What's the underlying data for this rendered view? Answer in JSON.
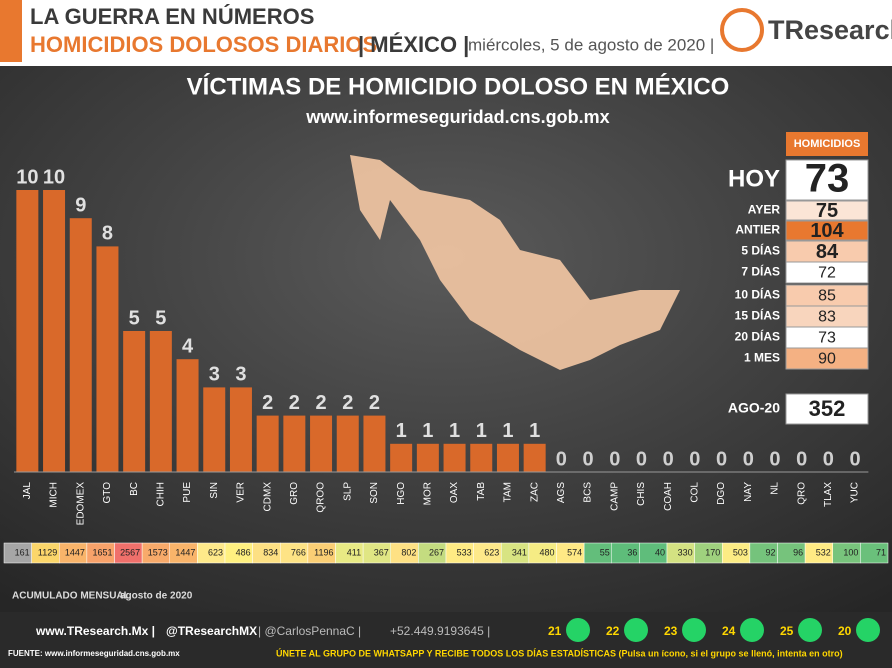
{
  "header": {
    "line1": "LA GUERRA EN NÚMEROS",
    "line2": "HOMICIDIOS DOLOSOS DIARIOS",
    "country": "| MÉXICO |",
    "date": "miércoles, 5 de agosto de 2020 |",
    "logo": "TResearch"
  },
  "chart_data": {
    "type": "bar",
    "title": "VÍCTIMAS DE HOMICIDIO DOLOSO EN MÉXICO",
    "subtitle": "www.informeseguridad.cns.gob.mx",
    "categories": [
      "JAL",
      "MICH",
      "EDOMEX",
      "GTO",
      "BC",
      "CHIH",
      "PUE",
      "SIN",
      "VER",
      "CDMX",
      "GRO",
      "QROO",
      "SLP",
      "SON",
      "HGO",
      "MOR",
      "OAX",
      "TAB",
      "TAM",
      "ZAC",
      "AGS",
      "BCS",
      "CAMP",
      "CHIS",
      "COAH",
      "COL",
      "DGO",
      "NAY",
      "NL",
      "QRO",
      "TLAX",
      "YUC"
    ],
    "values": [
      10,
      10,
      9,
      8,
      5,
      5,
      4,
      3,
      3,
      2,
      2,
      2,
      2,
      2,
      1,
      1,
      1,
      1,
      1,
      1,
      0,
      0,
      0,
      0,
      0,
      0,
      0,
      0,
      0,
      0,
      0,
      0
    ],
    "color": "#d9692a"
  },
  "monthly": {
    "label": "ACUMULADO MENSUAL",
    "period": "agosto de 2020",
    "values": [
      161,
      1129,
      1447,
      1651,
      2567,
      1573,
      1447,
      623,
      486,
      834,
      766,
      1196,
      411,
      367,
      802,
      267,
      533,
      623,
      341,
      480,
      574,
      55,
      36,
      40,
      330,
      170,
      503,
      92,
      96,
      532,
      100,
      71
    ],
    "colors": [
      "#a6a6a6",
      "#fbd66a",
      "#f9b46a",
      "#f8a26a",
      "#f0706b",
      "#f8aa6a",
      "#f9b46a",
      "#fee98a",
      "#fff080",
      "#fde083",
      "#fee385",
      "#fbcf75",
      "#e8ea84",
      "#e0e684",
      "#fee184",
      "#c4dc80",
      "#ffeb84",
      "#fee98a",
      "#d8e482",
      "#f5ec84",
      "#ffe985",
      "#63be7b",
      "#5ebd7a",
      "#5fbd7b",
      "#d4e282",
      "#9fd17e",
      "#fcec84",
      "#75c37c",
      "#76c37c",
      "#ffeb84",
      "#78c47c",
      "#6ac07b"
    ]
  },
  "summary": {
    "header": "HOMICIDIOS",
    "rows": [
      {
        "label": "HOY",
        "value": 73,
        "color": "#ffffff"
      },
      {
        "label": "AYER",
        "value": 75,
        "color": "#fbe5d6"
      },
      {
        "label": "ANTIER",
        "value": 104,
        "color": "#e8782f"
      },
      {
        "label": "5 DÍAS",
        "value": 84,
        "color": "#f8cbad"
      },
      {
        "label": "7 DÍAS",
        "value": 72,
        "color": "#ffffff"
      },
      {
        "label": "10 DÍAS",
        "value": 85,
        "color": "#f8cbad"
      },
      {
        "label": "15 DÍAS",
        "value": 83,
        "color": "#f8d5bd"
      },
      {
        "label": "20 DÍAS",
        "value": 73,
        "color": "#ffffff"
      },
      {
        "label": "1 MES",
        "value": 90,
        "color": "#f4b183"
      }
    ],
    "total_label": "AGO-20",
    "total": 352
  },
  "footer": {
    "site": "www.TResearch.Mx |",
    "twitter": "@TResearchMX",
    "handle": "| @CarlosPennaC |",
    "phone": "+52.449.9193645 |",
    "groups": [
      21,
      22,
      23,
      24,
      25,
      20
    ],
    "source": "FUENTE: www.informeseguridad.cns.gob.mx",
    "join": "ÚNETE AL GRUPO DE WHATSAPP Y RECIBE TODOS LOS DÍAS ESTADÍSTICAS (Pulsa un ícono, si el grupo se llenó, intenta en otro)"
  }
}
